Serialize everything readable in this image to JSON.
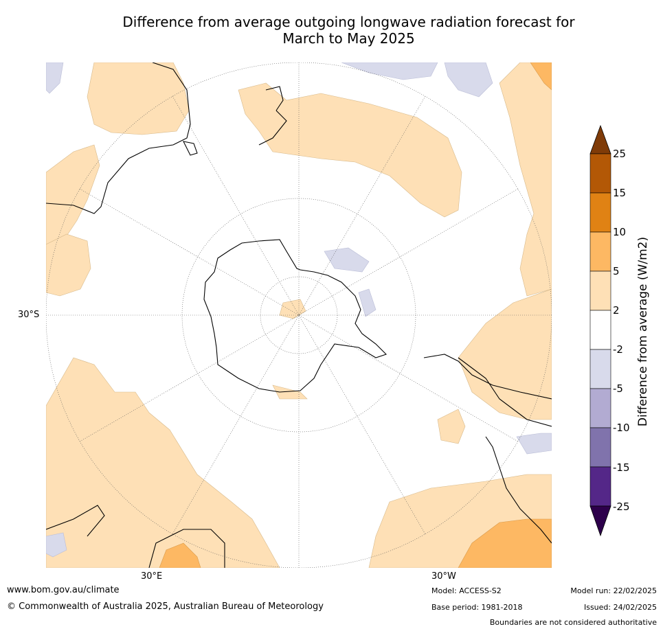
{
  "title_line1": "Difference from average outgoing longwave radiation forecast for",
  "title_line2": "March to May 2025",
  "map_labels": {
    "lat": "30°S",
    "lon_left": "30°E",
    "lon_right": "30°W"
  },
  "colorbar": {
    "title": "Difference from average (W/m2)",
    "ticks": [
      "25",
      "15",
      "10",
      "5",
      "2",
      "-2",
      "-5",
      "-10",
      "-15",
      "-25"
    ],
    "colors": [
      "#b35806",
      "#e08214",
      "#fdb863",
      "#fee0b6",
      "#ffffff",
      "#d8daeb",
      "#b2abd2",
      "#8073ac",
      "#542788"
    ],
    "extend_top_color": "#7f3b08",
    "extend_bottom_color": "#2d004b"
  },
  "map_colors": {
    "positive_light": "#fee0b6",
    "positive_mid": "#fdb863",
    "negative_light": "#d8daeb"
  },
  "footer": {
    "website": "www.bom.gov.au/climate",
    "copyright": "© Commonwealth of Australia 2025, Australian Bureau of Meteorology",
    "model": "Model: ACCESS-S2",
    "base_period": "Base period: 1981-2018",
    "model_run": "Model run: 22/02/2025",
    "issued": "Issued: 24/02/2025",
    "disclaimer": "Boundaries are not considered authoritative"
  }
}
